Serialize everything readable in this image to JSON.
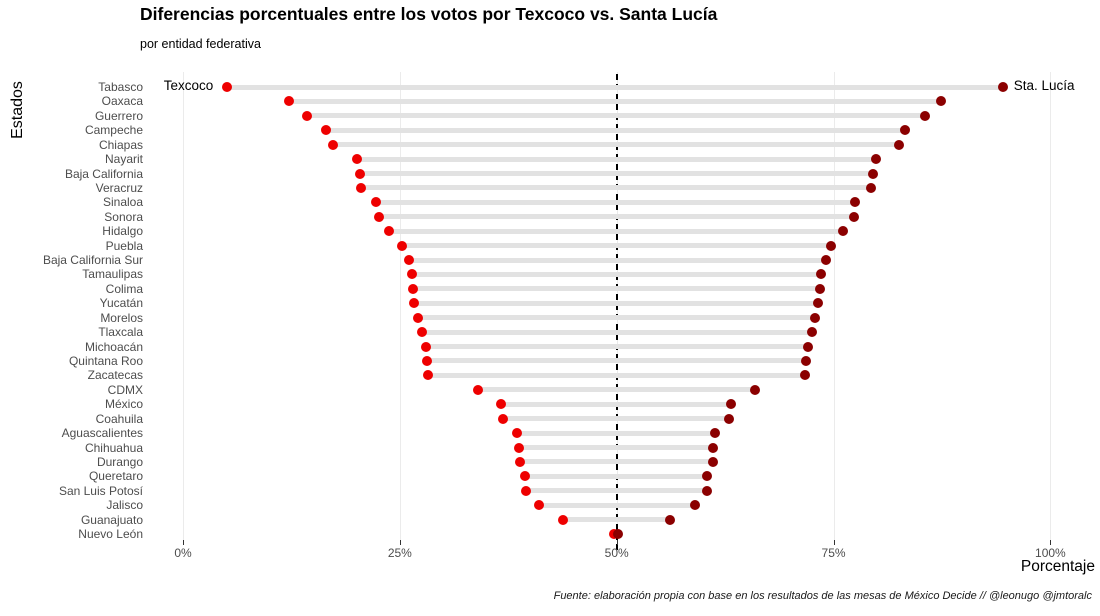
{
  "title": "Diferencias porcentuales entre los votos por Texcoco vs. Santa Lucía",
  "subtitle": "por entidad federativa",
  "y_axis_title": "Estados",
  "x_axis_title": "Porcentaje",
  "caption": "Fuente: elaboración propia con base en los resultados de las mesas de México Decide // @leonugo @jmtoralc",
  "annotations": {
    "left_series": "Texcoco",
    "right_series": "Sta. Lucía"
  },
  "colors": {
    "texcoco_dot": "#ee0000",
    "santa_lucia_dot": "#8b0000",
    "connector_bar": "#e2e2e2",
    "gridline": "#ebebeb",
    "axis_text": "#4d4d4d",
    "reference_line": "#000000"
  },
  "chart_data": {
    "type": "scatter",
    "subtype": "dumbbell",
    "title": "Diferencias porcentuales entre los votos por Texcoco vs. Santa Lucía",
    "subtitle": "por entidad federativa",
    "xlabel": "Porcentaje",
    "ylabel": "Estados",
    "xlim": [
      0,
      100
    ],
    "x_ticks": [
      {
        "value": 0,
        "label": "0%"
      },
      {
        "value": 25,
        "label": "25%"
      },
      {
        "value": 50,
        "label": "50%"
      },
      {
        "value": 75,
        "label": "75%"
      },
      {
        "value": 100,
        "label": "100%"
      }
    ],
    "reference_line_x": 50,
    "grid": "vertical-only",
    "legend_position": "in-plot-annotations",
    "series_names": [
      "Texcoco",
      "Sta. Lucía"
    ],
    "states": [
      {
        "name": "Tabasco",
        "texcoco": 5.1,
        "santa_lucia": 94.5
      },
      {
        "name": "Oaxaca",
        "texcoco": 12.2,
        "santa_lucia": 87.4
      },
      {
        "name": "Guerrero",
        "texcoco": 14.3,
        "santa_lucia": 85.5
      },
      {
        "name": "Campeche",
        "texcoco": 16.5,
        "santa_lucia": 83.2
      },
      {
        "name": "Chiapas",
        "texcoco": 17.3,
        "santa_lucia": 82.6
      },
      {
        "name": "Nayarit",
        "texcoco": 20.1,
        "santa_lucia": 79.9
      },
      {
        "name": "Baja California",
        "texcoco": 20.4,
        "santa_lucia": 79.5
      },
      {
        "name": "Veracruz",
        "texcoco": 20.5,
        "santa_lucia": 79.3
      },
      {
        "name": "Sinaloa",
        "texcoco": 22.3,
        "santa_lucia": 77.5
      },
      {
        "name": "Sonora",
        "texcoco": 22.6,
        "santa_lucia": 77.3
      },
      {
        "name": "Hidalgo",
        "texcoco": 23.7,
        "santa_lucia": 76.1
      },
      {
        "name": "Puebla",
        "texcoco": 25.3,
        "santa_lucia": 74.7
      },
      {
        "name": "Baja California Sur",
        "texcoco": 26.0,
        "santa_lucia": 74.1
      },
      {
        "name": "Tamaulipas",
        "texcoco": 26.4,
        "santa_lucia": 73.6
      },
      {
        "name": "Colima",
        "texcoco": 26.5,
        "santa_lucia": 73.4
      },
      {
        "name": "Yucatán",
        "texcoco": 26.6,
        "santa_lucia": 73.2
      },
      {
        "name": "Morelos",
        "texcoco": 27.1,
        "santa_lucia": 72.9
      },
      {
        "name": "Tlaxcala",
        "texcoco": 27.5,
        "santa_lucia": 72.5
      },
      {
        "name": "Michoacán",
        "texcoco": 28.0,
        "santa_lucia": 72.0
      },
      {
        "name": "Quintana Roo",
        "texcoco": 28.1,
        "santa_lucia": 71.8
      },
      {
        "name": "Zacatecas",
        "texcoco": 28.2,
        "santa_lucia": 71.7
      },
      {
        "name": "CDMX",
        "texcoco": 34.0,
        "santa_lucia": 66.0
      },
      {
        "name": "México",
        "texcoco": 36.7,
        "santa_lucia": 63.2
      },
      {
        "name": "Coahuila",
        "texcoco": 36.9,
        "santa_lucia": 62.9
      },
      {
        "name": "Aguascalientes",
        "texcoco": 38.5,
        "santa_lucia": 61.3
      },
      {
        "name": "Chihuahua",
        "texcoco": 38.7,
        "santa_lucia": 61.1
      },
      {
        "name": "Durango",
        "texcoco": 38.9,
        "santa_lucia": 61.1
      },
      {
        "name": "Queretaro",
        "texcoco": 39.4,
        "santa_lucia": 60.4
      },
      {
        "name": "San Luis Potosí",
        "texcoco": 39.5,
        "santa_lucia": 60.4
      },
      {
        "name": "Jalisco",
        "texcoco": 41.0,
        "santa_lucia": 59.0
      },
      {
        "name": "Guanajuato",
        "texcoco": 43.8,
        "santa_lucia": 56.1
      },
      {
        "name": "Nuevo León",
        "texcoco": 49.7,
        "santa_lucia": 50.1
      }
    ]
  }
}
